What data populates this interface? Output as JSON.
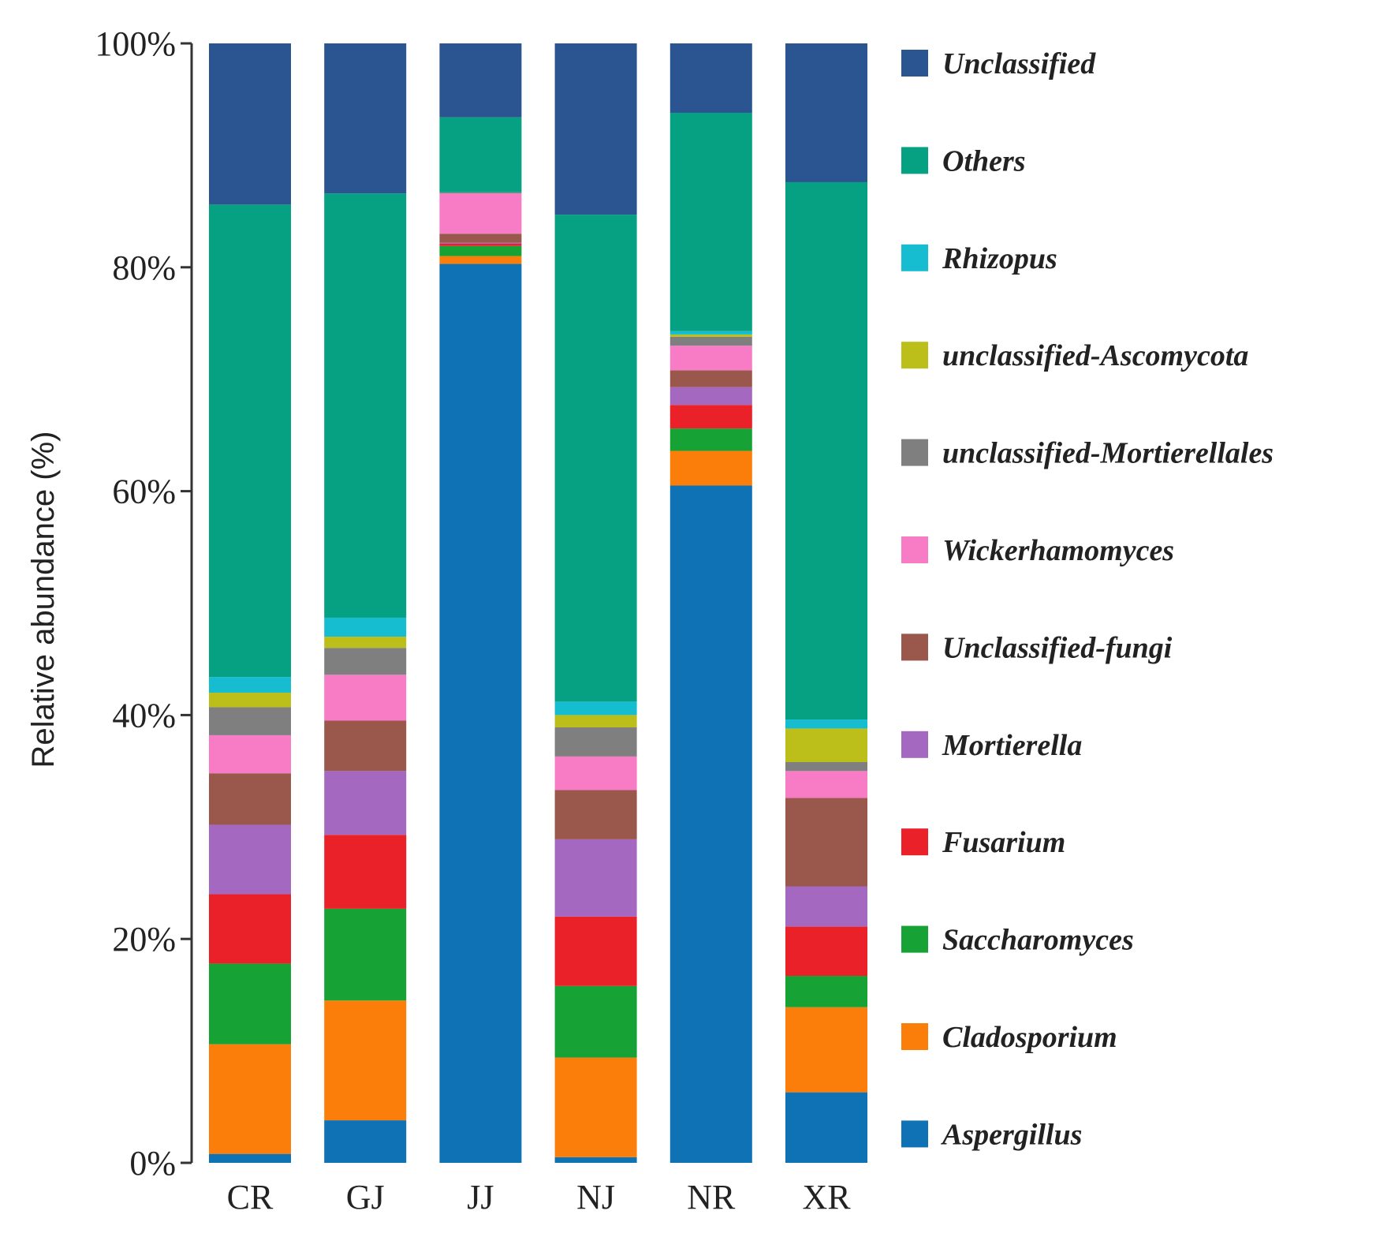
{
  "chart_data": {
    "type": "bar",
    "stacked": true,
    "ylabel": "Relative abundance (%)",
    "xlabel": "",
    "ylim": [
      0,
      100
    ],
    "yticks": [
      "0%",
      "20%",
      "40%",
      "60%",
      "80%",
      "100%"
    ],
    "categories": [
      "CR",
      "GJ",
      "JJ",
      "NJ",
      "NR",
      "XR"
    ],
    "legend_position": "right",
    "series": [
      {
        "name": "Aspergillus",
        "color": "#0e72b5",
        "values": [
          0.8,
          3.8,
          80.3,
          0.5,
          60.5,
          6.3
        ]
      },
      {
        "name": "Cladosporium",
        "color": "#fc7e0a",
        "values": [
          9.8,
          10.7,
          0.7,
          8.9,
          3.1,
          7.6
        ]
      },
      {
        "name": "Saccharomyces",
        "color": "#17a235",
        "values": [
          7.2,
          8.2,
          0.9,
          6.4,
          2.0,
          2.8
        ]
      },
      {
        "name": "Fusarium",
        "color": "#ea2129",
        "values": [
          6.2,
          6.6,
          0.2,
          6.2,
          2.1,
          4.4
        ]
      },
      {
        "name": "Mortierella",
        "color": "#a568c0",
        "values": [
          6.2,
          5.7,
          0.1,
          6.9,
          1.6,
          3.6
        ]
      },
      {
        "name": "Unclassified-fungi",
        "color": "#9a584d",
        "values": [
          4.6,
          4.5,
          0.8,
          4.4,
          1.5,
          7.9
        ]
      },
      {
        "name": "Wickerhamomyces",
        "color": "#f77cc5",
        "values": [
          3.4,
          4.1,
          3.6,
          3.0,
          2.2,
          2.4
        ]
      },
      {
        "name": "unclassified-Mortierellales",
        "color": "#7f7f7f",
        "values": [
          2.5,
          2.4,
          0.1,
          2.6,
          0.8,
          0.8
        ]
      },
      {
        "name": "unclassified-Ascomycota",
        "color": "#bcbf19",
        "values": [
          1.3,
          1.0,
          0.0,
          1.1,
          0.2,
          3.0
        ]
      },
      {
        "name": "Rhizopus",
        "color": "#16bccf",
        "values": [
          1.4,
          1.7,
          0.0,
          1.2,
          0.3,
          0.8
        ]
      },
      {
        "name": "Others",
        "color": "#06a082",
        "values": [
          42.2,
          37.9,
          6.7,
          43.5,
          19.5,
          48.0
        ]
      },
      {
        "name": "Unclassified",
        "color": "#2a5590",
        "values": [
          14.4,
          13.4,
          6.6,
          15.3,
          6.2,
          12.4
        ]
      }
    ]
  }
}
